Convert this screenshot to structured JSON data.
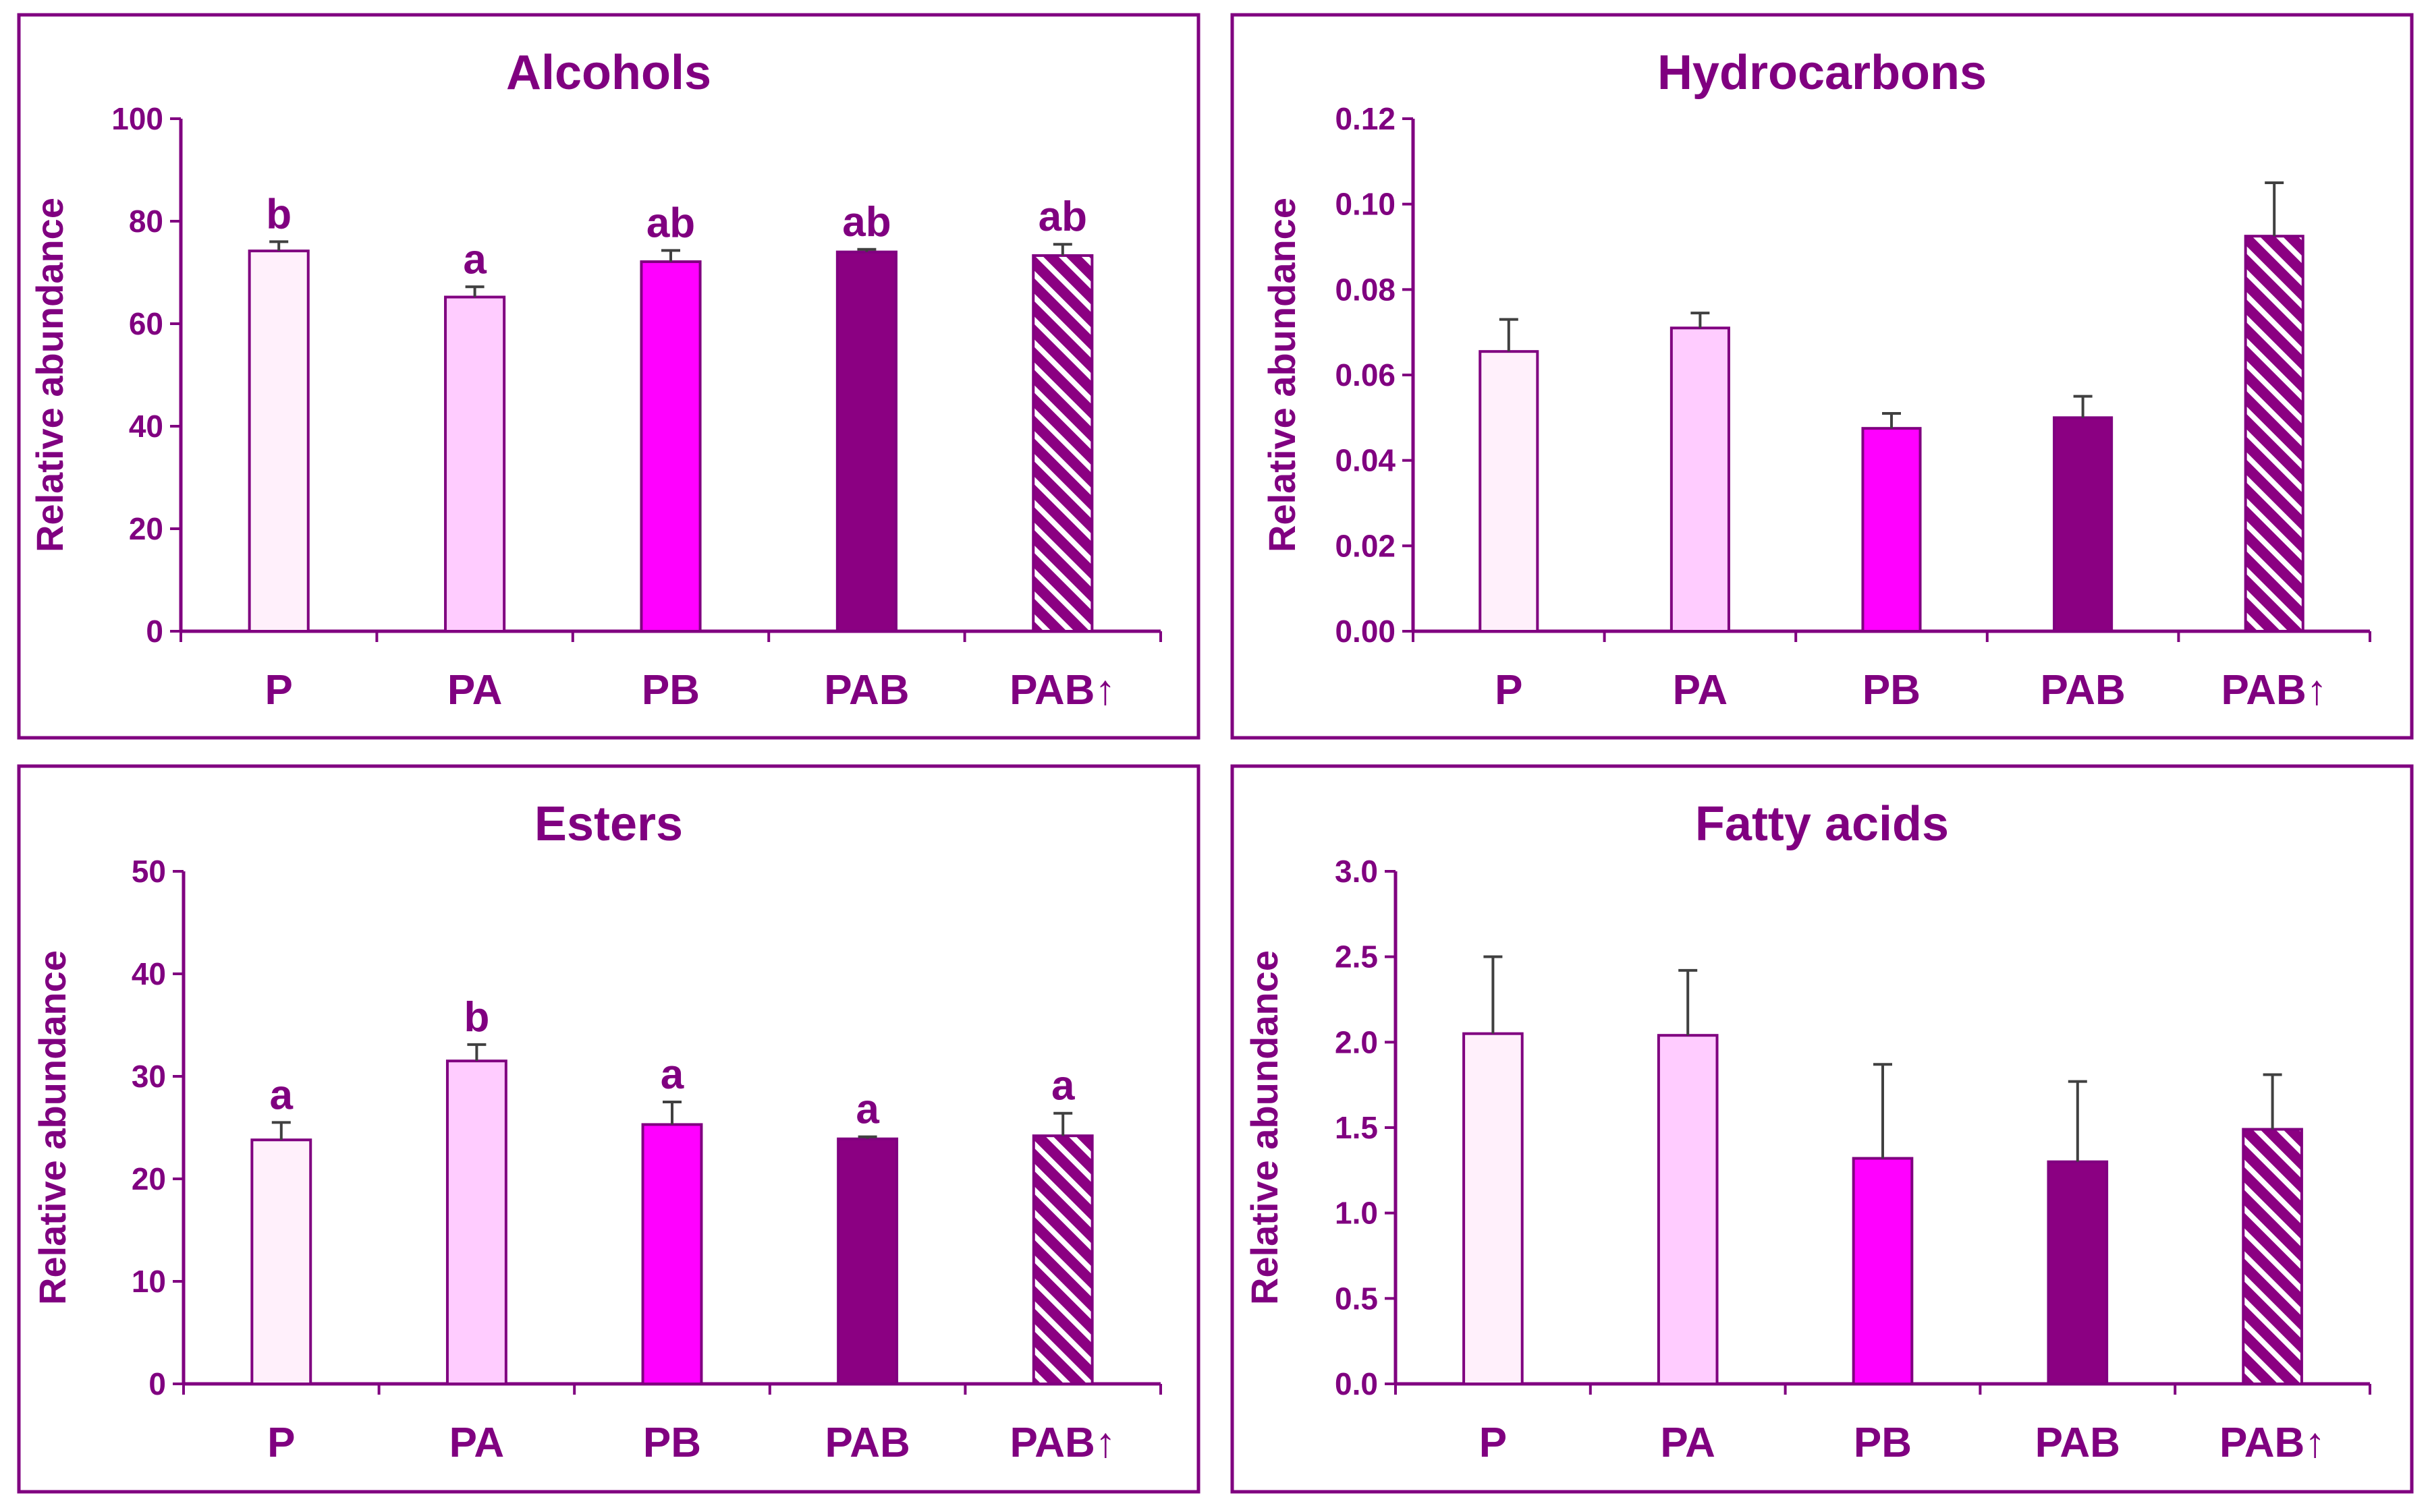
{
  "figure": {
    "background": "#ffffff",
    "frame_color": "#800080",
    "text_color": "#800080",
    "error_bar_color": "#404040"
  },
  "series_styles": [
    {
      "group": "P",
      "fill": "#fff0fb",
      "pattern": "solid"
    },
    {
      "group": "PA",
      "fill": "#ffccff",
      "pattern": "solid"
    },
    {
      "group": "PB",
      "fill": "#ff00ff",
      "pattern": "solid"
    },
    {
      "group": "PAB",
      "fill": "#8b0082",
      "pattern": "solid"
    },
    {
      "group": "PAB↑",
      "fill": "#8b0082",
      "pattern": "diagonal-stripes-white"
    }
  ],
  "chart_data": [
    {
      "type": "bar",
      "title": "Alcohols",
      "ylabel": "Relative abundance",
      "xlabel": "",
      "categories": [
        "P",
        "PA",
        "PB",
        "PAB",
        "PAB↑"
      ],
      "values": [
        74.2,
        65.2,
        72.1,
        74.0,
        73.3
      ],
      "errors": [
        1.8,
        2.0,
        2.2,
        0.5,
        2.2
      ],
      "labels": [
        "b",
        "a",
        "ab",
        "ab",
        "ab"
      ],
      "ylim": [
        0,
        100
      ],
      "yticks": [
        "0",
        "20",
        "40",
        "60",
        "80",
        "100"
      ]
    },
    {
      "type": "bar",
      "title": "Hydrocarbons",
      "ylabel": "Relative abundance",
      "xlabel": "",
      "categories": [
        "P",
        "PA",
        "PB",
        "PAB",
        "PAB↑"
      ],
      "values": [
        0.0655,
        0.071,
        0.0475,
        0.05,
        0.0925
      ],
      "errors": [
        0.0075,
        0.0035,
        0.0035,
        0.005,
        0.0125
      ],
      "labels": [
        "",
        "",
        "",
        "",
        ""
      ],
      "ylim": [
        0,
        0.12
      ],
      "yticks": [
        "0.00",
        "0.02",
        "0.04",
        "0.06",
        "0.08",
        "0.10",
        "0.12"
      ]
    },
    {
      "type": "bar",
      "title": "Esters",
      "ylabel": "Relative abundance",
      "xlabel": "",
      "categories": [
        "P",
        "PA",
        "PB",
        "PAB",
        "PAB↑"
      ],
      "values": [
        23.8,
        31.5,
        25.3,
        23.9,
        24.2
      ],
      "errors": [
        1.7,
        1.6,
        2.2,
        0.2,
        2.2
      ],
      "labels": [
        "a",
        "b",
        "a",
        "a",
        "a"
      ],
      "ylim": [
        0,
        50
      ],
      "yticks": [
        "0",
        "10",
        "20",
        "30",
        "40",
        "50"
      ]
    },
    {
      "type": "bar",
      "title": "Fatty acids",
      "ylabel": "Relative abundance",
      "xlabel": "",
      "categories": [
        "P",
        "PA",
        "PB",
        "PAB",
        "PAB↑"
      ],
      "values": [
        2.05,
        2.04,
        1.32,
        1.3,
        1.49
      ],
      "errors": [
        0.45,
        0.38,
        0.55,
        0.47,
        0.32
      ],
      "labels": [
        "",
        "",
        "",
        "",
        ""
      ],
      "ylim": [
        0,
        3.0
      ],
      "yticks": [
        "0.0",
        "0.5",
        "1.0",
        "1.5",
        "2.0",
        "2.5",
        "3.0"
      ]
    }
  ]
}
